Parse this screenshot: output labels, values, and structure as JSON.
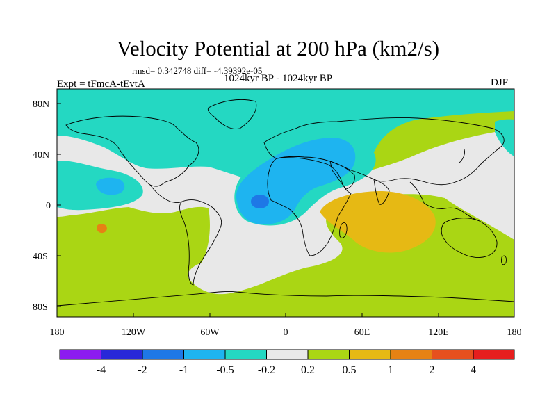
{
  "title": "Velocity Potential at 200 hPa (km2/s)",
  "stats": "rmsd= 0.342748  diff= -4.39392e-05",
  "subtitle": "1024kyr BP - 1024kyr BP",
  "experiment": "Expt = tFmcA-tEvtA",
  "season": "DJF",
  "lat_labels": [
    "80N",
    "40N",
    "0",
    "40S",
    "80S"
  ],
  "lon_labels": [
    "180",
    "120W",
    "60W",
    "0",
    "60E",
    "120E",
    "180"
  ],
  "colorbar": {
    "labels": [
      "-4",
      "-2",
      "-1",
      "-0.5",
      "-0.2",
      "0.2",
      "0.5",
      "1",
      "2",
      "4"
    ],
    "colors": [
      "#8c1cf0",
      "#2828d8",
      "#1e78e6",
      "#1eb4f0",
      "#24d8c2",
      "#e8e8e8",
      "#aad614",
      "#e6b914",
      "#e68214",
      "#e6501e",
      "#e61e1e"
    ]
  },
  "palette": {
    "neg_med": "#24d8c2",
    "neg_high": "#1eb4f0",
    "neg_max": "#1e78e6",
    "neutral": "#e8e8e8",
    "pos_low": "#aad614",
    "pos_med": "#e6b914",
    "pos_high": "#e68214",
    "coast": "#000000"
  }
}
